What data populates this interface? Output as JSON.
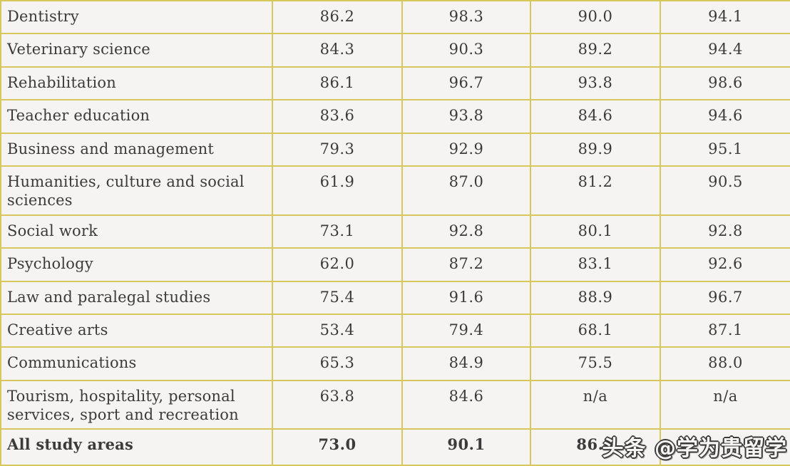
{
  "colors": {
    "border": "#d8c75a",
    "cell_bg": "#f5f4f2",
    "text": "#3c3a3b"
  },
  "watermark": {
    "text": "头条 @学为贵留学"
  },
  "chart_data": {
    "type": "table",
    "note_visible_headers": "",
    "rows": [
      {
        "label": "Dentistry",
        "values": [
          "86.2",
          "98.3",
          "90.0",
          "94.1"
        ],
        "bold": false
      },
      {
        "label": "Veterinary science",
        "values": [
          "84.3",
          "90.3",
          "89.2",
          "94.4"
        ],
        "bold": false
      },
      {
        "label": "Rehabilitation",
        "values": [
          "86.1",
          "96.7",
          "93.8",
          "98.6"
        ],
        "bold": false
      },
      {
        "label": "Teacher education",
        "values": [
          "83.6",
          "93.8",
          "84.6",
          "94.6"
        ],
        "bold": false
      },
      {
        "label": "Business and management",
        "values": [
          "79.3",
          "92.9",
          "89.9",
          "95.1"
        ],
        "bold": false
      },
      {
        "label": "Humanities, culture and social sciences",
        "values": [
          "61.9",
          "87.0",
          "81.2",
          "90.5"
        ],
        "bold": false
      },
      {
        "label": "Social work",
        "values": [
          "73.1",
          "92.8",
          "80.1",
          "92.8"
        ],
        "bold": false
      },
      {
        "label": "Psychology",
        "values": [
          "62.0",
          "87.2",
          "83.1",
          "92.6"
        ],
        "bold": false
      },
      {
        "label": "Law and paralegal studies",
        "values": [
          "75.4",
          "91.6",
          "88.9",
          "96.7"
        ],
        "bold": false
      },
      {
        "label": "Creative arts",
        "values": [
          "53.4",
          "79.4",
          "68.1",
          "87.1"
        ],
        "bold": false
      },
      {
        "label": "Communications",
        "values": [
          "65.3",
          "84.9",
          "75.5",
          "88.0"
        ],
        "bold": false
      },
      {
        "label": "Tourism, hospitality, personal services, sport and recreation",
        "values": [
          "63.8",
          "84.6",
          "n/a",
          "n/a"
        ],
        "bold": false
      },
      {
        "label": "All study areas",
        "values": [
          "73.0",
          "90.1",
          "86.2",
          ""
        ],
        "bold": true
      }
    ]
  }
}
